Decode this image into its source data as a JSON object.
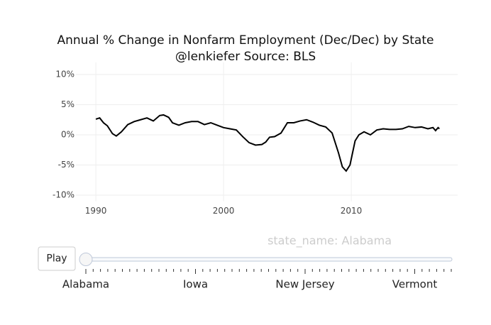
{
  "chart_data": {
    "type": "line",
    "title": "Annual % Change in Nonfarm Employment (Dec/Dec) by State",
    "subtitle": "@lenkiefer Source: BLS",
    "x": [
      1990.0,
      1990.3,
      1990.6,
      1990.9,
      1991.3,
      1991.6,
      1992.0,
      1992.5,
      1993.0,
      1993.5,
      1994.0,
      1994.5,
      1995.0,
      1995.3,
      1995.7,
      1996.0,
      1996.5,
      1997.0,
      1997.5,
      1998.0,
      1998.5,
      1999.0,
      1999.5,
      2000.0,
      2000.5,
      2001.0,
      2001.5,
      2002.0,
      2002.5,
      2003.0,
      2003.3,
      2003.6,
      2004.0,
      2004.5,
      2005.0,
      2005.5,
      2006.0,
      2006.5,
      2007.0,
      2007.5,
      2008.0,
      2008.5,
      2009.0,
      2009.3,
      2009.6,
      2009.9,
      2010.3,
      2010.6,
      2011.0,
      2011.5,
      2012.0,
      2012.5,
      2013.0,
      2013.5,
      2014.0,
      2014.5,
      2015.0,
      2015.5,
      2016.0,
      2016.4,
      2016.6,
      2016.8,
      2016.9
    ],
    "series": [
      {
        "name": "Alabama",
        "color": "#000000",
        "values": [
          2.6,
          2.8,
          2.0,
          1.5,
          0.2,
          -0.2,
          0.5,
          1.7,
          2.2,
          2.5,
          2.8,
          2.3,
          3.2,
          3.3,
          2.9,
          2.0,
          1.6,
          2.0,
          2.2,
          2.2,
          1.7,
          2.0,
          1.6,
          1.2,
          1.0,
          0.8,
          -0.3,
          -1.3,
          -1.7,
          -1.6,
          -1.2,
          -0.4,
          -0.3,
          0.3,
          2.0,
          2.0,
          2.3,
          2.5,
          2.1,
          1.6,
          1.3,
          0.3,
          -3.0,
          -5.3,
          -6.0,
          -5.0,
          -1.0,
          0.0,
          0.5,
          0.0,
          0.8,
          1.0,
          0.9,
          0.9,
          1.0,
          1.4,
          1.2,
          1.3,
          1.0,
          1.2,
          0.7,
          1.2,
          1.0
        ]
      }
    ],
    "xlim": [
      1988.44,
      2018.33
    ],
    "xticks": [
      1990,
      2000,
      2010
    ],
    "ylim": [
      -11,
      12
    ],
    "yticks": [
      {
        "value": -10,
        "label": "-10%"
      },
      {
        "value": -5,
        "label": "-5%"
      },
      {
        "value": 0,
        "label": "0%"
      },
      {
        "value": 5,
        "label": "5%"
      },
      {
        "value": 10,
        "label": "10%"
      }
    ],
    "grid": true
  },
  "slider": {
    "button": "Play",
    "current_label": "state_name: Alabama",
    "labels": [
      "Alabama",
      "Iowa",
      "New Jersey",
      "Vermont"
    ]
  }
}
